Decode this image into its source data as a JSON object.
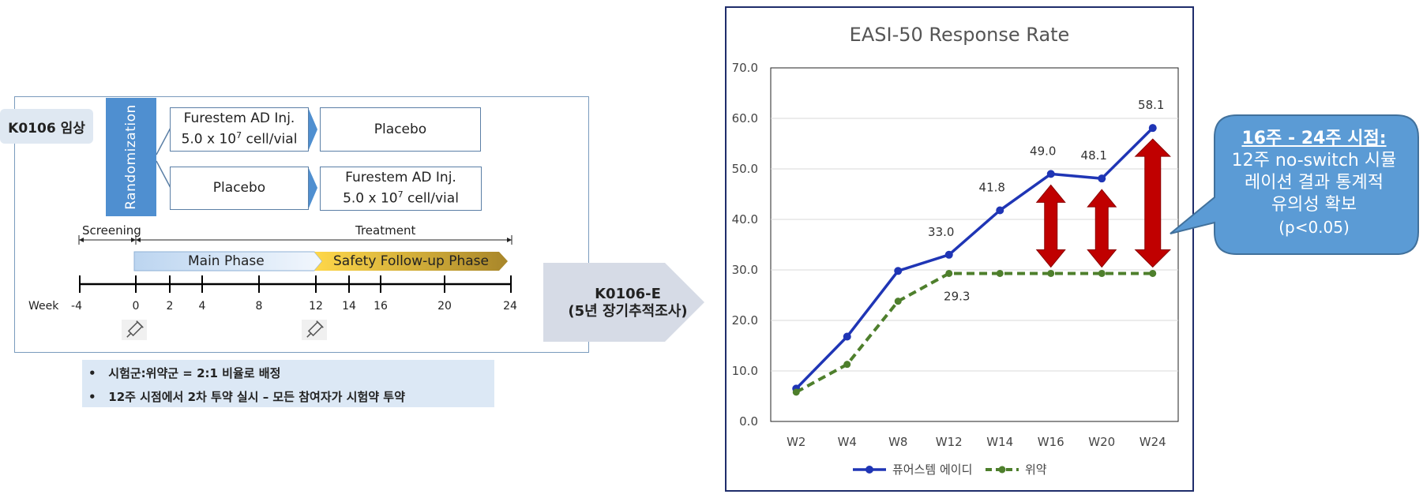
{
  "study": {
    "label": "K0106 임상",
    "randomization": "Randomization",
    "arm1_drug_line1": "Furestem AD Inj.",
    "arm1_drug_line2": "5.0 x 10",
    "arm1_drug_exp": "7",
    "arm1_drug_unit": " cell/vial",
    "arm1_after": "Placebo",
    "arm2_first": "Placebo",
    "arm2_after_line1": "Furestem AD Inj.",
    "arm2_after_line2": "5.0 x 10",
    "arm2_after_exp": "7",
    "arm2_after_unit": " cell/vial",
    "screening": "Screening",
    "treatment": "Treatment",
    "main_phase": "Main Phase",
    "safety_phase": "Safety Follow-up Phase",
    "week_label": "Week",
    "weeks": [
      "-4",
      "0",
      "2",
      "4",
      "8",
      "12",
      "14",
      "16",
      "20",
      "24"
    ],
    "notes": [
      "시험군:위약군 = 2:1 비율로 배정",
      "12주 시점에서 2차 투약 실시 – 모든 참여자가 시험약 투약"
    ]
  },
  "extension": {
    "line1": "K0106-E",
    "line2": "(5년 장기추적조사)"
  },
  "callout": {
    "title": "16주 - 24주 시점:",
    "lines": [
      "12주 no-switch 시뮬",
      "레이션 결과 통계적",
      "유의성 확보",
      "(p<0.05)"
    ]
  },
  "colors": {
    "series1": "#1f35b5",
    "series2": "#4e7f2c",
    "arrow": "#c00000",
    "callout": "#5b9bd5"
  },
  "chart_data": {
    "type": "line",
    "title": "EASI-50 Response Rate",
    "categories": [
      "W2",
      "W4",
      "W8",
      "W12",
      "W14",
      "W16",
      "W20",
      "W24"
    ],
    "ylim": [
      0,
      70
    ],
    "yticks": [
      "0.0",
      "10.0",
      "20.0",
      "30.0",
      "40.0",
      "50.0",
      "60.0",
      "70.0"
    ],
    "grid": true,
    "legend": "bottom",
    "series": [
      {
        "name": "퓨어스템 에이디",
        "values": [
          6.5,
          16.8,
          29.8,
          33.0,
          41.8,
          49.0,
          48.1,
          58.1
        ],
        "labels": [
          "",
          "",
          "",
          "33.0",
          "41.8",
          "49.0",
          "48.1",
          "58.1"
        ]
      },
      {
        "name": "위약",
        "values": [
          5.8,
          11.3,
          23.8,
          29.3,
          29.3,
          29.3,
          29.3,
          29.3
        ],
        "labels": [
          "",
          "",
          "",
          "29.3",
          "",
          "",
          "",
          ""
        ]
      }
    ]
  }
}
